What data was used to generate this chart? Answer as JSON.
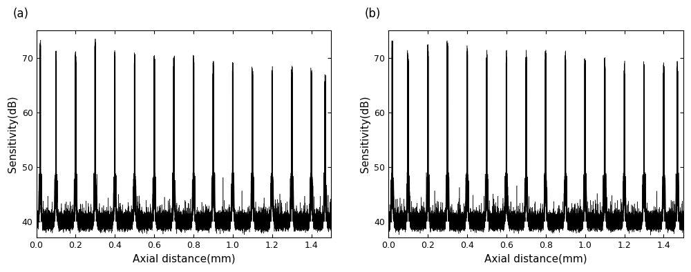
{
  "panel_labels": [
    "(a)",
    "(b)"
  ],
  "xlabel": "Axial distance(mm)",
  "ylabel": "Sensitivity(dB)",
  "xlim": [
    0.0,
    1.5
  ],
  "ylim": [
    37,
    75
  ],
  "yticks": [
    40,
    50,
    60,
    70
  ],
  "xticks": [
    0.0,
    0.2,
    0.4,
    0.6,
    0.8,
    1.0,
    1.2,
    1.4
  ],
  "peak_positions_a": [
    0.02,
    0.1,
    0.2,
    0.3,
    0.4,
    0.5,
    0.6,
    0.7,
    0.8,
    0.9,
    1.0,
    1.1,
    1.2,
    1.3,
    1.4,
    1.47
  ],
  "peak_heights_a": [
    73,
    71,
    71,
    73,
    71,
    71,
    70,
    70,
    70,
    69,
    69,
    68,
    68,
    68,
    68,
    67
  ],
  "peak_positions_b": [
    0.02,
    0.1,
    0.2,
    0.3,
    0.4,
    0.5,
    0.6,
    0.7,
    0.8,
    0.9,
    1.0,
    1.1,
    1.2,
    1.3,
    1.4,
    1.47
  ],
  "peak_heights_b": [
    73,
    71,
    72,
    73,
    72,
    71,
    71,
    71,
    71,
    71,
    70,
    70,
    69,
    69,
    69,
    69
  ],
  "noise_floor": 40.0,
  "line_color": "#000000",
  "background_color": "#ffffff",
  "fig_width": 10.0,
  "fig_height": 3.94,
  "dpi": 100,
  "label_fontsize": 11,
  "tick_fontsize": 9,
  "panel_label_fontsize": 12
}
